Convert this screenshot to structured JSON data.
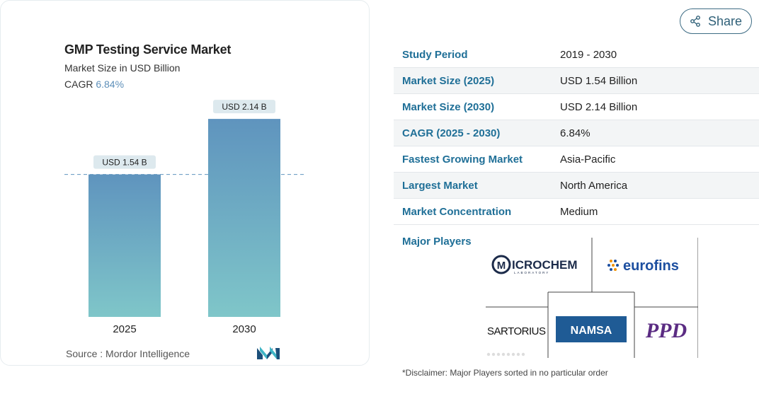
{
  "chart_data": {
    "type": "bar",
    "title": "GMP Testing Service Market",
    "subtitle": "Market Size in USD Billion",
    "cagr_label": "CAGR",
    "cagr_value": "6.84%",
    "categories": [
      "2025",
      "2030"
    ],
    "values": [
      1.54,
      2.14
    ],
    "data_labels": [
      "USD 1.54 B",
      "USD 2.14 B"
    ],
    "ylim": [
      0,
      2.5
    ],
    "colors": {
      "bar_top": "#5f94be",
      "bar_bottom": "#7fc6c9",
      "label_bg": "#dde9ee",
      "dashed": "#5f94be"
    }
  },
  "source_text": "Source :  Mordor Intelligence",
  "share": {
    "label": "Share"
  },
  "table": {
    "rows": [
      {
        "key": "Study Period",
        "value": "2019 - 2030"
      },
      {
        "key": "Market Size (2025)",
        "value": "USD 1.54 Billion"
      },
      {
        "key": "Market Size (2030)",
        "value": "USD 2.14 Billion"
      },
      {
        "key": "CAGR (2025 - 2030)",
        "value": "6.84%"
      },
      {
        "key": "Fastest Growing Market",
        "value": "Asia-Pacific"
      },
      {
        "key": "Largest Market",
        "value": "North America"
      },
      {
        "key": "Market Concentration",
        "value": "Medium"
      }
    ]
  },
  "players": {
    "label": "Major Players",
    "logos": {
      "microchem": "ICROCHEM",
      "microchem_sub": "LABORATORY",
      "eurofins": "eurofins",
      "sartorius": "SARTORIUS",
      "namsa": "NAMSA",
      "ppd": "PPD"
    }
  },
  "disclaimer": "*Disclaimer: Major Players sorted in no particular order"
}
